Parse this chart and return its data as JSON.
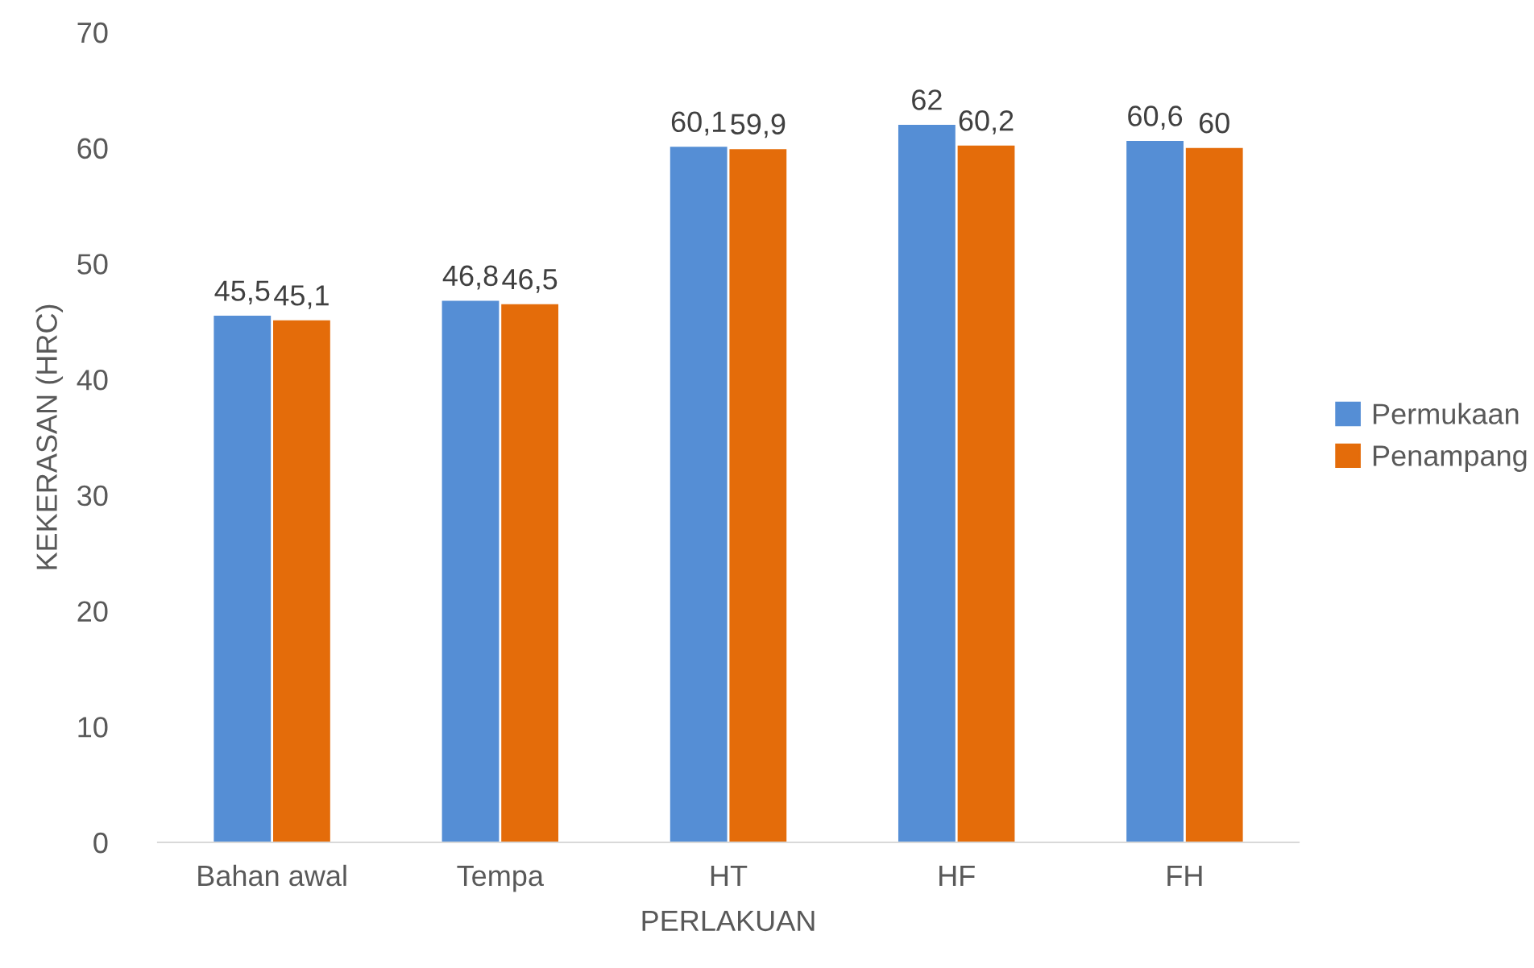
{
  "chart_data": {
    "type": "bar",
    "xlabel": "PERLAKUAN",
    "ylabel": "KEKERASAN (HRC)",
    "categories": [
      "Bahan awal",
      "Tempa",
      "HT",
      "HF",
      "FH"
    ],
    "series": [
      {
        "name": "Permukaan",
        "color": "#558ed5",
        "values": [
          45.5,
          46.8,
          60.1,
          62,
          60.6
        ],
        "value_labels": [
          "45,5",
          "46,8",
          "60,1",
          "62",
          "60,6"
        ]
      },
      {
        "name": "Penampang",
        "color": "#e46c0a",
        "values": [
          45.1,
          46.5,
          59.9,
          60.2,
          60
        ],
        "value_labels": [
          "45,1",
          "46,5",
          "59,9",
          "60,2",
          "60"
        ]
      }
    ],
    "ylim": [
      0,
      70
    ],
    "yticks": [
      0,
      10,
      20,
      30,
      40,
      50,
      60,
      70
    ],
    "grid": false,
    "legend": "right"
  }
}
